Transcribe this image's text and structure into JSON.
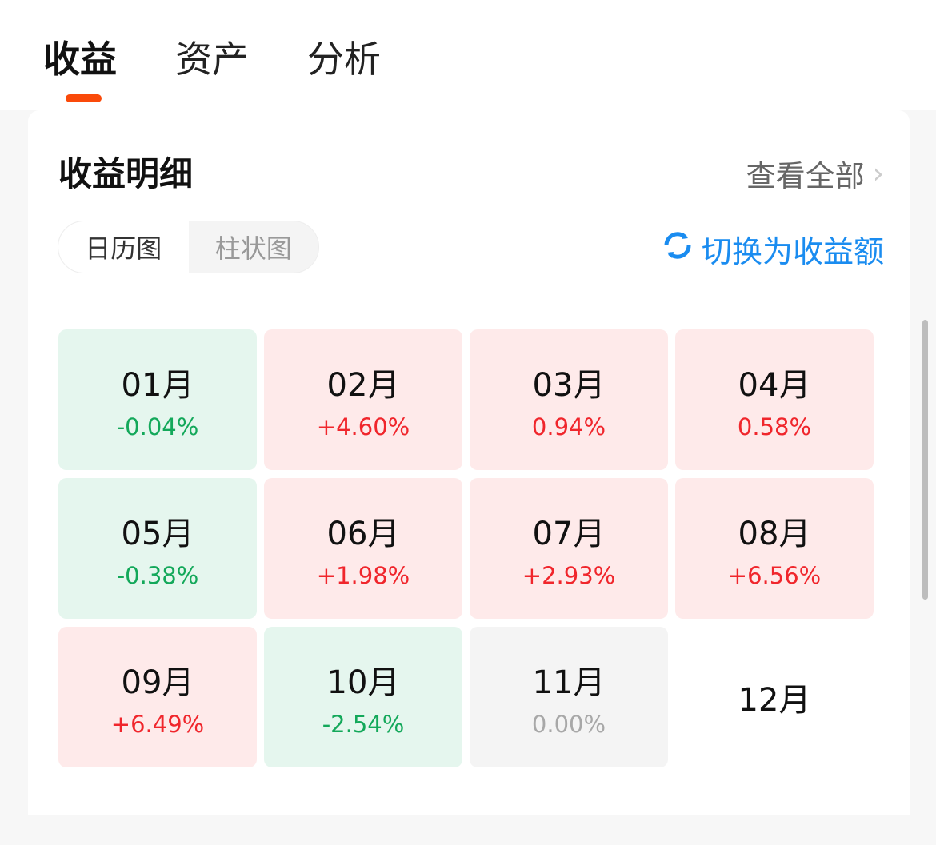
{
  "tabs": [
    {
      "label": "收益",
      "active": true
    },
    {
      "label": "资产"
    },
    {
      "label": "分析"
    }
  ],
  "accent": "#fa4a0a",
  "card": {
    "title": "收益明细",
    "view_all": "查看全部",
    "segments": [
      "日历图",
      "柱状图"
    ],
    "active_segment": "日历图",
    "switch_label": "切换为收益额",
    "months": [
      {
        "month": "01月",
        "value": "-0.04%",
        "trend": "down"
      },
      {
        "month": "02月",
        "value": "+4.60%",
        "trend": "up"
      },
      {
        "month": "03月",
        "value": "0.94%",
        "trend": "up"
      },
      {
        "month": "04月",
        "value": "0.58%",
        "trend": "up"
      },
      {
        "month": "05月",
        "value": "-0.38%",
        "trend": "down"
      },
      {
        "month": "06月",
        "value": "+1.98%",
        "trend": "up"
      },
      {
        "month": "07月",
        "value": "+2.93%",
        "trend": "up"
      },
      {
        "month": "08月",
        "value": "+6.56%",
        "trend": "up"
      },
      {
        "month": "09月",
        "value": "+6.49%",
        "trend": "up"
      },
      {
        "month": "10月",
        "value": "-2.54%",
        "trend": "down"
      },
      {
        "month": "11月",
        "value": "0.00%",
        "trend": "flat"
      },
      {
        "month": "12月",
        "value": null,
        "trend": "none"
      }
    ]
  },
  "colors": {
    "up": "#f0262c",
    "down": "#13a85a",
    "flat": "#a8a8a8",
    "link": "#1a8cf0"
  }
}
